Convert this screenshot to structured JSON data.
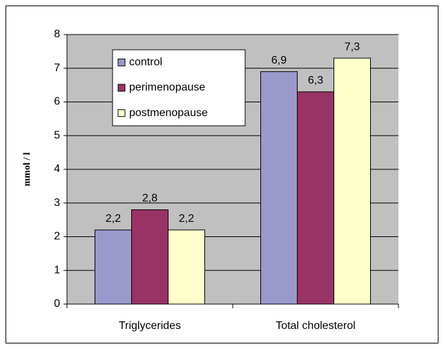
{
  "chart_data": {
    "type": "bar",
    "categories": [
      "Triglycerides",
      "Total cholesterol"
    ],
    "series": [
      {
        "name": "control",
        "color": "#9999cc",
        "values": [
          2.2,
          6.9
        ],
        "value_labels": [
          "2,2",
          "6,9"
        ]
      },
      {
        "name": "perimenopause",
        "color": "#993366",
        "values": [
          2.8,
          6.3
        ],
        "value_labels": [
          "2,8",
          "6,3"
        ]
      },
      {
        "name": "postmenopause",
        "color": "#ffffcc",
        "values": [
          2.2,
          7.3
        ],
        "value_labels": [
          "2,2",
          "7,3"
        ]
      }
    ],
    "y_label": "mmol / l",
    "ylim": [
      0,
      8
    ],
    "yticks": [
      0,
      1,
      2,
      3,
      4,
      5,
      6,
      7,
      8
    ],
    "grid": true,
    "legend": "upper left"
  }
}
